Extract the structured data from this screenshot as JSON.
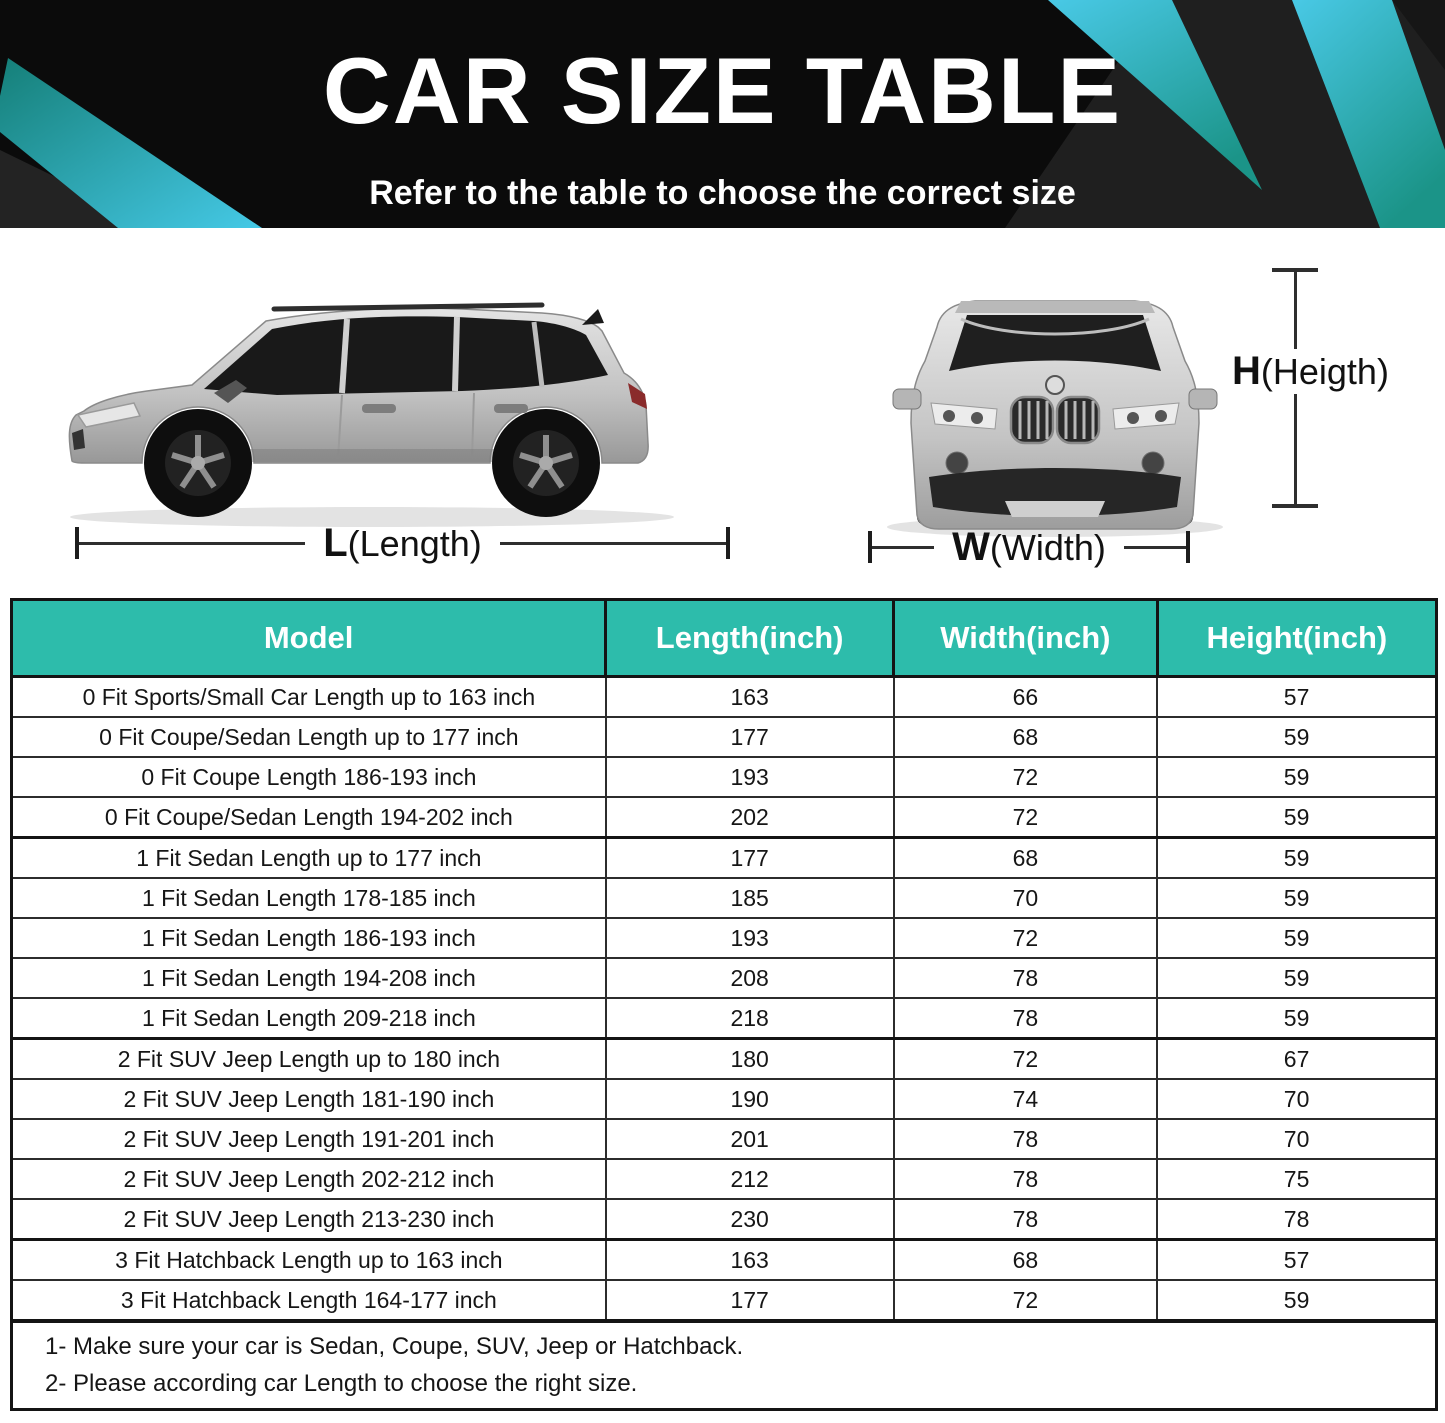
{
  "banner": {
    "title": "CAR SIZE TABLE",
    "subtitle": "Refer to the table to choose the correct size",
    "colors": {
      "background": "#0b0b0b",
      "accent_cyan": "#45c8e6",
      "accent_teal": "#178f85"
    }
  },
  "diagram": {
    "length": {
      "letter": "L",
      "rest": "(Length)"
    },
    "width": {
      "letter": "W",
      "rest": "(Width)"
    },
    "height": {
      "letter": "H",
      "rest": "(Heigth)"
    }
  },
  "table": {
    "header_bg": "#2dbcab",
    "columns": [
      "Model",
      "Length(inch)",
      "Width(inch)",
      "Height(inch)"
    ],
    "rows": [
      {
        "model": "0 Fit Sports/Small Car Length up to 163 inch",
        "length": "163",
        "width": "66",
        "height": "57",
        "group_start": false
      },
      {
        "model": "0 Fit Coupe/Sedan Length up to 177 inch",
        "length": "177",
        "width": "68",
        "height": "59",
        "group_start": false
      },
      {
        "model": "0 Fit Coupe Length 186-193 inch",
        "length": "193",
        "width": "72",
        "height": "59",
        "group_start": false
      },
      {
        "model": "0 Fit Coupe/Sedan Length 194-202 inch",
        "length": "202",
        "width": "72",
        "height": "59",
        "group_start": false
      },
      {
        "model": "1 Fit Sedan Length up to 177 inch",
        "length": "177",
        "width": "68",
        "height": "59",
        "group_start": true
      },
      {
        "model": "1 Fit Sedan Length 178-185 inch",
        "length": "185",
        "width": "70",
        "height": "59",
        "group_start": false
      },
      {
        "model": "1 Fit Sedan Length 186-193 inch",
        "length": "193",
        "width": "72",
        "height": "59",
        "group_start": false
      },
      {
        "model": "1 Fit Sedan Length 194-208 inch",
        "length": "208",
        "width": "78",
        "height": "59",
        "group_start": false
      },
      {
        "model": "1 Fit Sedan Length 209-218 inch",
        "length": "218",
        "width": "78",
        "height": "59",
        "group_start": false
      },
      {
        "model": "2 Fit SUV Jeep Length up to 180 inch",
        "length": "180",
        "width": "72",
        "height": "67",
        "group_start": true
      },
      {
        "model": "2 Fit SUV Jeep Length 181-190 inch",
        "length": "190",
        "width": "74",
        "height": "70",
        "group_start": false
      },
      {
        "model": "2 Fit SUV Jeep Length 191-201 inch",
        "length": "201",
        "width": "78",
        "height": "70",
        "group_start": false
      },
      {
        "model": "2 Fit SUV Jeep Length 202-212 inch",
        "length": "212",
        "width": "78",
        "height": "75",
        "group_start": false
      },
      {
        "model": "2 Fit SUV Jeep Length 213-230 inch",
        "length": "230",
        "width": "78",
        "height": "78",
        "group_start": false
      },
      {
        "model": "3 Fit Hatchback Length up to 163 inch",
        "length": "163",
        "width": "68",
        "height": "57",
        "group_start": true
      },
      {
        "model": "3 Fit Hatchback Length 164-177 inch",
        "length": "177",
        "width": "72",
        "height": "59",
        "group_start": false
      }
    ]
  },
  "notes": {
    "items": [
      "1- Make sure your car is Sedan, Coupe, SUV, Jeep or Hatchback.",
      "2- Please according car Length to choose the right size."
    ]
  }
}
